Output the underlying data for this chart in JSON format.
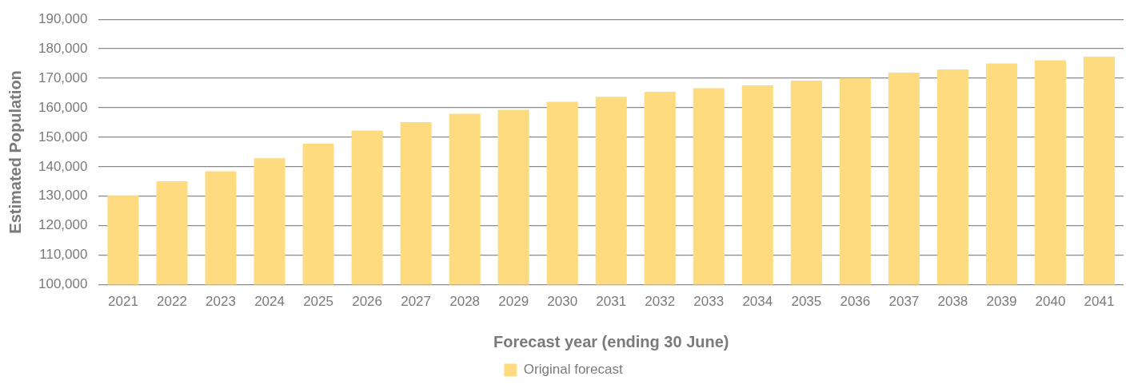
{
  "chart_data": {
    "type": "bar",
    "xlabel": "Forecast year (ending 30 June)",
    "ylabel": "Estimated Population",
    "categories": [
      "2021",
      "2022",
      "2023",
      "2024",
      "2025",
      "2026",
      "2027",
      "2028",
      "2029",
      "2030",
      "2031",
      "2032",
      "2033",
      "2034",
      "2035",
      "2036",
      "2037",
      "2038",
      "2039",
      "2040",
      "2041"
    ],
    "series": [
      {
        "name": "Original forecast",
        "color": "#fddb7e",
        "values": [
          130300,
          135100,
          138500,
          142900,
          147800,
          152300,
          155100,
          158000,
          159300,
          162000,
          163700,
          165400,
          166600,
          167600,
          169200,
          170100,
          171900,
          173000,
          175000,
          176100,
          177300
        ]
      }
    ],
    "ylim": [
      100000,
      190000
    ],
    "yticks": [
      {
        "value": 100000,
        "label": "100,000"
      },
      {
        "value": 110000,
        "label": "110,000"
      },
      {
        "value": 120000,
        "label": "120,000"
      },
      {
        "value": 130000,
        "label": "130,000"
      },
      {
        "value": 140000,
        "label": "140,000"
      },
      {
        "value": 150000,
        "label": "150,000"
      },
      {
        "value": 160000,
        "label": "160,000"
      },
      {
        "value": 170000,
        "label": "170,000"
      },
      {
        "value": 180000,
        "label": "180,000"
      },
      {
        "value": 190000,
        "label": "190,000"
      }
    ],
    "grid": "y",
    "legend": "bottom"
  }
}
